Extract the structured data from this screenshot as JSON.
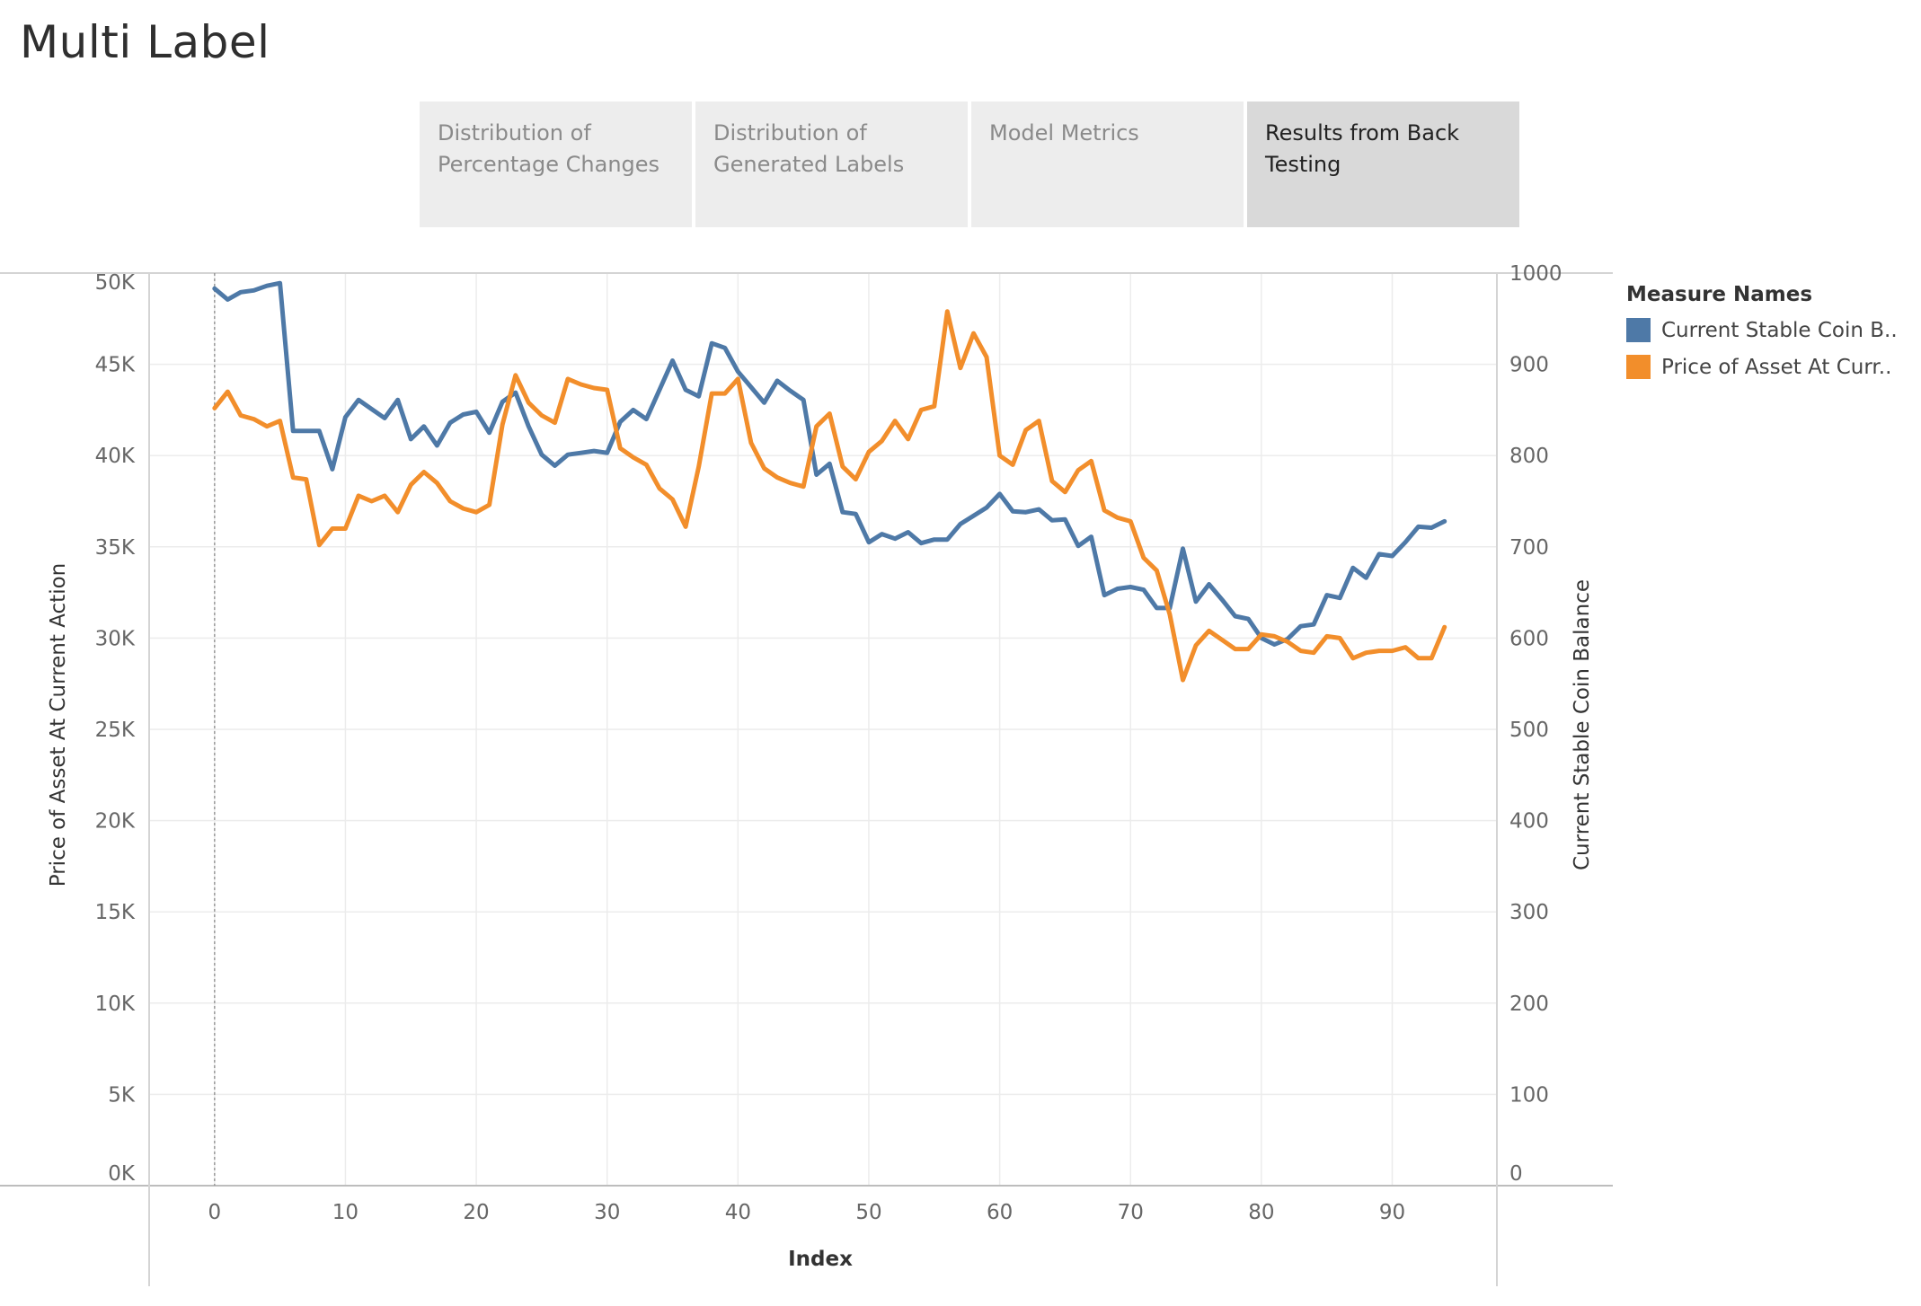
{
  "page": {
    "title": "Multi Label"
  },
  "tabs": [
    {
      "label": "Distribution of\nPercentage Changes",
      "active": false
    },
    {
      "label": "Distribution of\nGenerated Labels",
      "active": false
    },
    {
      "label": "Model Metrics",
      "active": false
    },
    {
      "label": "Results from Back\nTesting",
      "active": true
    }
  ],
  "legend": {
    "title": "Measure Names",
    "items": [
      {
        "label": "Current Stable Coin B..",
        "color": "#4e79a7"
      },
      {
        "label": "Price of Asset At Curr..",
        "color": "#f28e2b"
      }
    ]
  },
  "chart_data": {
    "type": "line",
    "xlabel": "Index",
    "ylabel_left": "Price of Asset At Current Action",
    "ylabel_right": "Current Stable Coin Balance",
    "xlim": [
      -5,
      98
    ],
    "ylim_left": [
      0,
      50000
    ],
    "ylim_right": [
      0,
      1000
    ],
    "x_ticks": [
      0,
      10,
      20,
      30,
      40,
      50,
      60,
      70,
      80,
      90
    ],
    "y_ticks_left": [
      0,
      5000,
      10000,
      15000,
      20000,
      25000,
      30000,
      35000,
      40000,
      45000,
      50000
    ],
    "y_tick_labels_left": [
      "0K",
      "5K",
      "10K",
      "15K",
      "20K",
      "25K",
      "30K",
      "35K",
      "40K",
      "45K",
      "50K"
    ],
    "y_ticks_right": [
      0,
      100,
      200,
      300,
      400,
      500,
      600,
      700,
      800,
      900,
      1000
    ],
    "grid": true,
    "reference_line_x": 0,
    "legend_position": "right",
    "series": [
      {
        "name": "Current Stable Coin B..",
        "axis": "right",
        "color": "#4e79a7",
        "x": [
          0,
          1,
          2,
          3,
          4,
          5,
          6,
          7,
          8,
          9,
          10,
          11,
          12,
          13,
          14,
          15,
          16,
          17,
          18,
          19,
          20,
          21,
          22,
          23,
          24,
          25,
          26,
          27,
          28,
          29,
          30,
          31,
          32,
          33,
          34,
          35,
          36,
          37,
          38,
          39,
          40,
          41,
          42,
          43,
          44,
          45,
          46,
          47,
          48,
          49,
          50,
          51,
          52,
          53,
          54,
          55,
          56,
          57,
          58,
          59,
          60,
          61,
          62,
          63,
          64,
          65,
          66,
          67,
          68,
          69,
          70,
          71,
          72,
          73,
          74,
          75,
          76,
          77,
          78,
          79,
          80,
          81,
          82,
          83,
          84,
          85,
          86,
          87,
          88,
          89,
          90,
          91,
          92,
          93,
          94
        ],
        "values": [
          983,
          971,
          979,
          981,
          986,
          989,
          827,
          827,
          827,
          785,
          842,
          861,
          851,
          841,
          861,
          818,
          832,
          811,
          836,
          845,
          848,
          825,
          859,
          869,
          832,
          801,
          789,
          801,
          803,
          805,
          803,
          837,
          850,
          840,
          872,
          904,
          872,
          865,
          923,
          918,
          892,
          875,
          858,
          882,
          871,
          861,
          779,
          791,
          738,
          736,
          705,
          714,
          709,
          716,
          704,
          708,
          708,
          725,
          734,
          743,
          758,
          739,
          738,
          741,
          729,
          730,
          701,
          711,
          647,
          654,
          656,
          653,
          633,
          633,
          698,
          640,
          659,
          642,
          624,
          621,
          600,
          593,
          599,
          613,
          615,
          647,
          644,
          677,
          666,
          692,
          690,
          705,
          722,
          721,
          728
        ]
      },
      {
        "name": "Price of Asset At Curr..",
        "axis": "left",
        "color": "#f28e2b",
        "x": [
          0,
          1,
          2,
          3,
          4,
          5,
          6,
          7,
          8,
          9,
          10,
          11,
          12,
          13,
          14,
          15,
          16,
          17,
          18,
          19,
          20,
          21,
          22,
          23,
          24,
          25,
          26,
          27,
          28,
          29,
          30,
          31,
          32,
          33,
          34,
          35,
          36,
          37,
          38,
          39,
          40,
          41,
          42,
          43,
          44,
          45,
          46,
          47,
          48,
          49,
          50,
          51,
          52,
          53,
          54,
          55,
          56,
          57,
          58,
          59,
          60,
          61,
          62,
          63,
          64,
          65,
          66,
          67,
          68,
          69,
          70,
          71,
          72,
          73,
          74,
          75,
          76,
          77,
          78,
          79,
          80,
          81,
          82,
          83,
          84,
          85,
          86,
          87,
          88,
          89,
          90,
          91,
          92,
          93,
          94
        ],
        "values": [
          42600,
          43500,
          42200,
          42000,
          41600,
          41900,
          38800,
          38700,
          35100,
          36000,
          36000,
          37800,
          37500,
          37800,
          36900,
          38400,
          39100,
          38500,
          37500,
          37100,
          36900,
          37300,
          41700,
          44400,
          42900,
          42200,
          41800,
          44200,
          43900,
          43700,
          43600,
          40400,
          39900,
          39500,
          38200,
          37600,
          36100,
          39400,
          43400,
          43400,
          44200,
          40700,
          39300,
          38800,
          38500,
          38300,
          41600,
          42300,
          39400,
          38700,
          40200,
          40800,
          41900,
          40900,
          42500,
          42700,
          47900,
          44800,
          46700,
          45400,
          40000,
          39500,
          41400,
          41900,
          38600,
          38000,
          39200,
          39700,
          37000,
          36600,
          36400,
          34400,
          33700,
          31300,
          27700,
          29600,
          30400,
          29900,
          29400,
          29400,
          30200,
          30100,
          29800,
          29300,
          29200,
          30100,
          30000,
          28900,
          29200,
          29300,
          29300,
          29500,
          28900,
          28900,
          30600
        ]
      }
    ]
  }
}
